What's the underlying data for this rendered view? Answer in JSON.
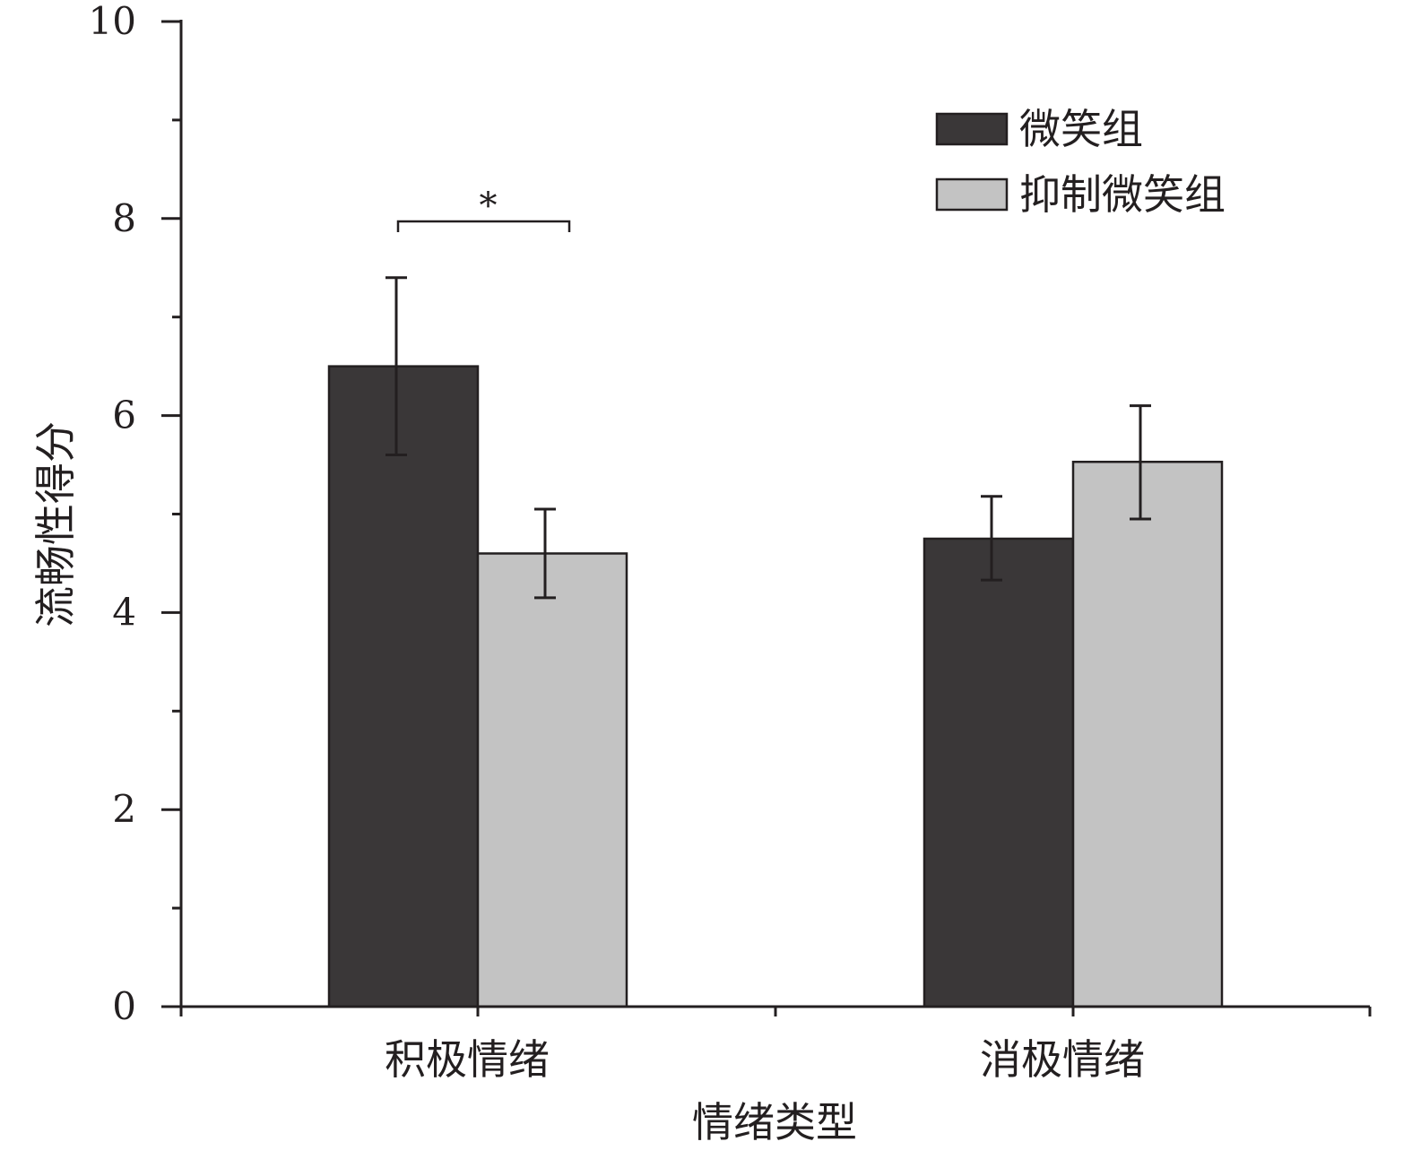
{
  "chart_data": {
    "type": "bar",
    "title": "",
    "xlabel": "情绪类型",
    "ylabel": "流畅性得分",
    "ylim": [
      0,
      10
    ],
    "yticks": [
      0,
      2,
      4,
      6,
      8,
      10
    ],
    "ytick_labels": [
      "0",
      "2",
      "4",
      "6",
      "8",
      "10"
    ],
    "minor_yticks": [
      1,
      3,
      5,
      7,
      9
    ],
    "categories": [
      "积极情绪",
      "消极情绪"
    ],
    "series": [
      {
        "name": "微笑组",
        "color": "#3a3738",
        "values": [
          6.5,
          4.75
        ],
        "error_low": [
          5.6,
          4.33
        ],
        "error_high": [
          7.4,
          5.18
        ]
      },
      {
        "name": "抑制微笑组",
        "color": "#c3c3c3",
        "values": [
          4.6,
          5.53
        ],
        "error_low": [
          4.15,
          4.95
        ],
        "error_high": [
          5.05,
          6.1
        ]
      }
    ],
    "significance": [
      {
        "category": "积极情绪",
        "label": "*"
      }
    ],
    "legend_position": "top-right",
    "grid": false
  }
}
